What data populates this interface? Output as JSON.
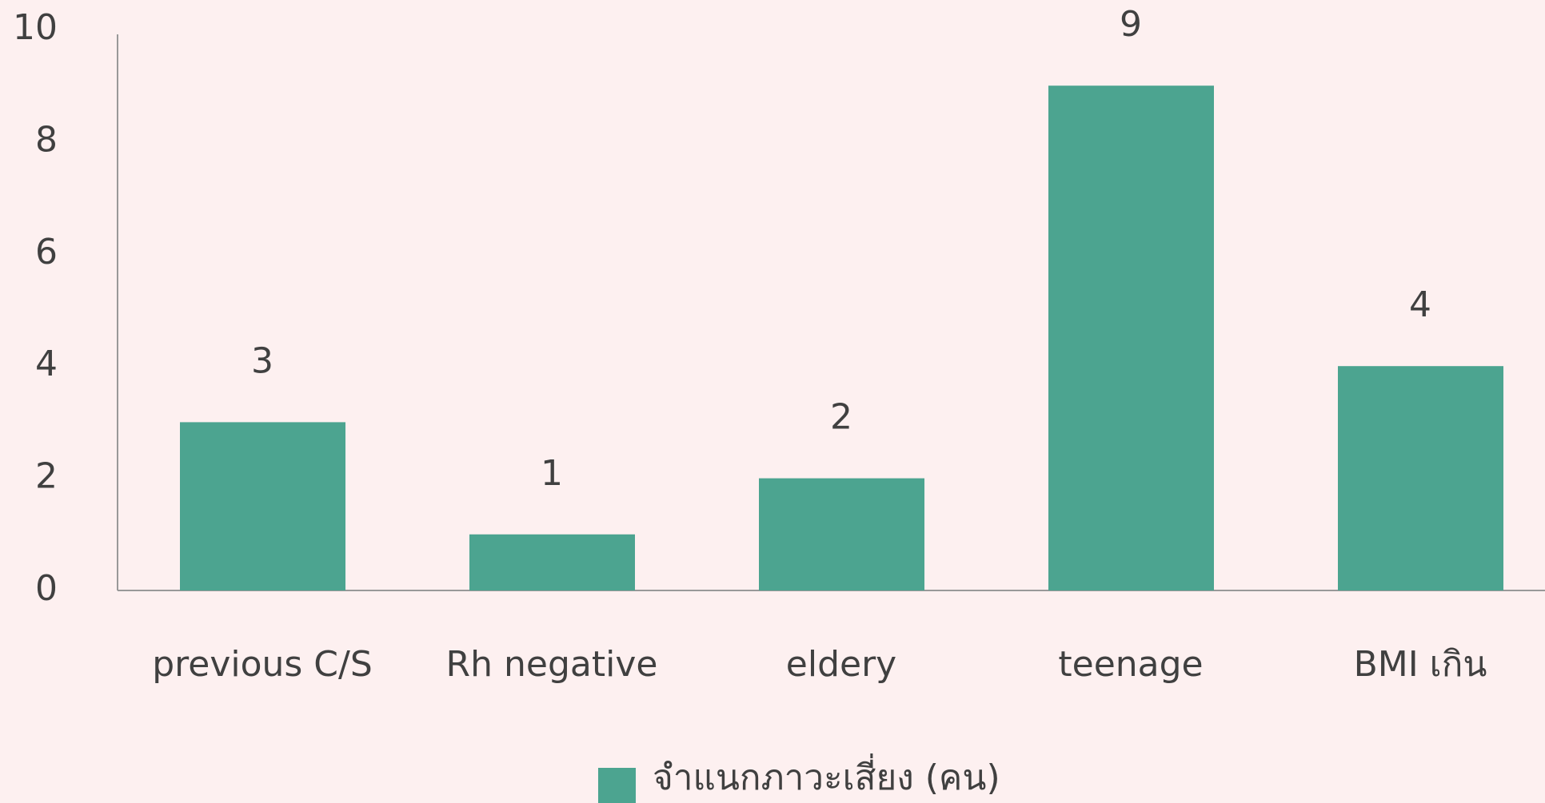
{
  "chart_data": {
    "type": "bar",
    "categories": [
      "previous C/S",
      "Rh negative",
      "eldery",
      "teenage",
      "BMI เกิน"
    ],
    "series": [
      {
        "name": "จำแนกภาวะเสี่ยง (คน)",
        "color": "#4ca490",
        "values": [
          3,
          1,
          2,
          9,
          4
        ]
      }
    ],
    "ylim": [
      0,
      10
    ],
    "yticks": [
      0,
      2,
      4,
      6,
      8,
      10
    ],
    "grid": false,
    "legend": "bottom"
  }
}
